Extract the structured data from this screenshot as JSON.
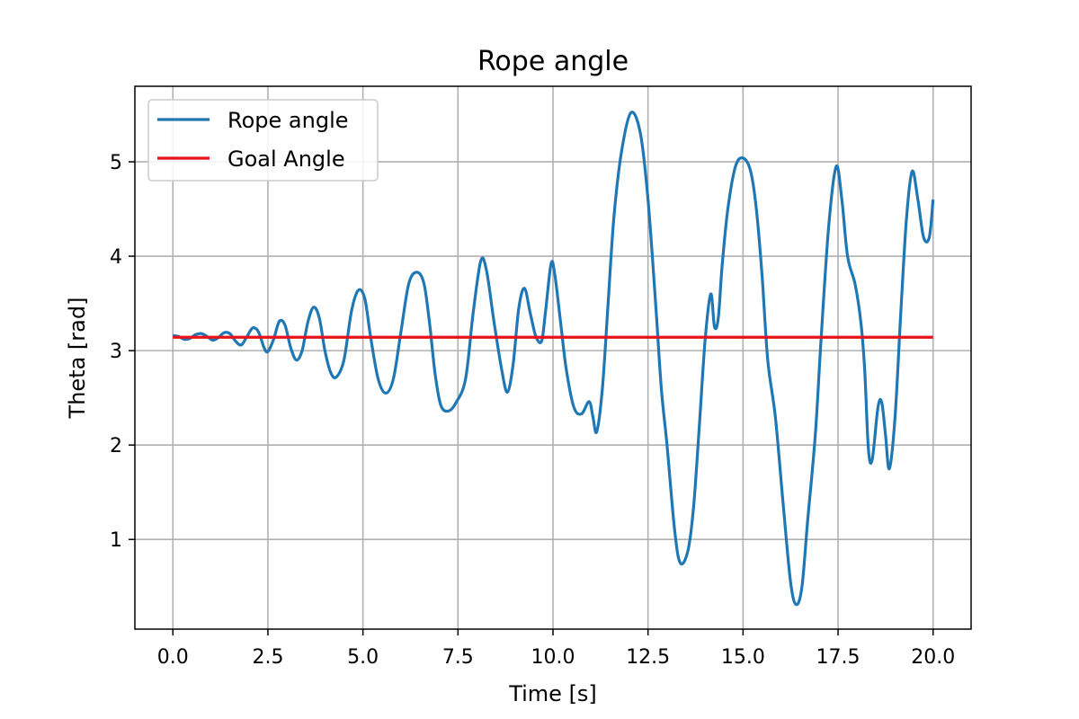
{
  "chart_data": {
    "type": "line",
    "title": "Rope angle",
    "xlabel": "Time [s]",
    "ylabel": "Theta [rad]",
    "xlim": [
      -1.0,
      21.0
    ],
    "ylim": [
      0.05,
      5.8
    ],
    "xticks": [
      0,
      2.5,
      5,
      7.5,
      10,
      12.5,
      15,
      17.5,
      20
    ],
    "xtick_labels": [
      "0.0",
      "2.5",
      "5.0",
      "7.5",
      "10.0",
      "12.5",
      "15.0",
      "17.5",
      "20.0"
    ],
    "yticks": [
      1,
      2,
      3,
      4,
      5
    ],
    "ytick_labels": [
      "1",
      "2",
      "3",
      "4",
      "5"
    ],
    "grid": true,
    "legend_position": "top-left",
    "series": [
      {
        "name": "Rope angle",
        "color": "#1f77b4",
        "points": [
          [
            0.0,
            3.16
          ],
          [
            0.15,
            3.15
          ],
          [
            0.3,
            3.12
          ],
          [
            0.45,
            3.13
          ],
          [
            0.6,
            3.17
          ],
          [
            0.75,
            3.18
          ],
          [
            0.9,
            3.15
          ],
          [
            1.05,
            3.11
          ],
          [
            1.2,
            3.14
          ],
          [
            1.35,
            3.19
          ],
          [
            1.5,
            3.18
          ],
          [
            1.65,
            3.1
          ],
          [
            1.8,
            3.06
          ],
          [
            1.95,
            3.15
          ],
          [
            2.1,
            3.24
          ],
          [
            2.25,
            3.2
          ],
          [
            2.4,
            3.03
          ],
          [
            2.5,
            2.99
          ],
          [
            2.65,
            3.12
          ],
          [
            2.8,
            3.31
          ],
          [
            2.95,
            3.27
          ],
          [
            3.1,
            3.03
          ],
          [
            3.25,
            2.9
          ],
          [
            3.4,
            3.0
          ],
          [
            3.55,
            3.3
          ],
          [
            3.7,
            3.46
          ],
          [
            3.85,
            3.35
          ],
          [
            4.0,
            3.0
          ],
          [
            4.15,
            2.77
          ],
          [
            4.3,
            2.72
          ],
          [
            4.5,
            2.9
          ],
          [
            4.7,
            3.42
          ],
          [
            4.88,
            3.64
          ],
          [
            5.05,
            3.55
          ],
          [
            5.2,
            3.15
          ],
          [
            5.4,
            2.7
          ],
          [
            5.6,
            2.55
          ],
          [
            5.8,
            2.7
          ],
          [
            6.0,
            3.2
          ],
          [
            6.2,
            3.7
          ],
          [
            6.4,
            3.83
          ],
          [
            6.6,
            3.72
          ],
          [
            6.75,
            3.3
          ],
          [
            6.9,
            2.75
          ],
          [
            7.05,
            2.42
          ],
          [
            7.25,
            2.36
          ],
          [
            7.45,
            2.45
          ],
          [
            7.7,
            2.7
          ],
          [
            7.9,
            3.4
          ],
          [
            8.1,
            3.95
          ],
          [
            8.25,
            3.85
          ],
          [
            8.45,
            3.3
          ],
          [
            8.65,
            2.8
          ],
          [
            8.8,
            2.56
          ],
          [
            8.95,
            2.85
          ],
          [
            9.1,
            3.45
          ],
          [
            9.25,
            3.66
          ],
          [
            9.4,
            3.4
          ],
          [
            9.55,
            3.15
          ],
          [
            9.7,
            3.1
          ],
          [
            9.8,
            3.4
          ],
          [
            9.95,
            3.92
          ],
          [
            10.05,
            3.8
          ],
          [
            10.2,
            3.3
          ],
          [
            10.35,
            2.8
          ],
          [
            10.55,
            2.4
          ],
          [
            10.75,
            2.33
          ],
          [
            10.95,
            2.46
          ],
          [
            11.05,
            2.3
          ],
          [
            11.15,
            2.14
          ],
          [
            11.3,
            2.6
          ],
          [
            11.45,
            3.5
          ],
          [
            11.6,
            4.4
          ],
          [
            11.8,
            5.1
          ],
          [
            12.05,
            5.52
          ],
          [
            12.3,
            5.3
          ],
          [
            12.5,
            4.6
          ],
          [
            12.7,
            3.5
          ],
          [
            12.85,
            2.6
          ],
          [
            13.0,
            2.0
          ],
          [
            13.2,
            1.1
          ],
          [
            13.35,
            0.75
          ],
          [
            13.55,
            0.88
          ],
          [
            13.7,
            1.35
          ],
          [
            13.85,
            2.2
          ],
          [
            14.0,
            3.1
          ],
          [
            14.15,
            3.6
          ],
          [
            14.25,
            3.25
          ],
          [
            14.35,
            3.35
          ],
          [
            14.45,
            3.9
          ],
          [
            14.6,
            4.5
          ],
          [
            14.8,
            4.95
          ],
          [
            15.0,
            5.04
          ],
          [
            15.2,
            4.9
          ],
          [
            15.35,
            4.5
          ],
          [
            15.5,
            3.8
          ],
          [
            15.65,
            2.9
          ],
          [
            15.85,
            2.3
          ],
          [
            16.05,
            1.4
          ],
          [
            16.25,
            0.55
          ],
          [
            16.4,
            0.31
          ],
          [
            16.55,
            0.5
          ],
          [
            16.7,
            1.2
          ],
          [
            16.9,
            2.1
          ],
          [
            17.05,
            3.1
          ],
          [
            17.25,
            4.3
          ],
          [
            17.45,
            4.95
          ],
          [
            17.6,
            4.6
          ],
          [
            17.75,
            4.0
          ],
          [
            17.95,
            3.7
          ],
          [
            18.1,
            3.3
          ],
          [
            18.2,
            2.8
          ],
          [
            18.3,
            1.95
          ],
          [
            18.4,
            1.85
          ],
          [
            18.55,
            2.4
          ],
          [
            18.65,
            2.45
          ],
          [
            18.75,
            2.1
          ],
          [
            18.85,
            1.75
          ],
          [
            19.0,
            2.3
          ],
          [
            19.15,
            3.4
          ],
          [
            19.3,
            4.4
          ],
          [
            19.45,
            4.9
          ],
          [
            19.6,
            4.6
          ],
          [
            19.75,
            4.2
          ],
          [
            19.9,
            4.2
          ],
          [
            20.0,
            4.6
          ]
        ]
      },
      {
        "name": "Goal Angle",
        "color": "#e8121a",
        "points": [
          [
            0.0,
            3.14159
          ],
          [
            20.0,
            3.14159
          ]
        ]
      }
    ]
  }
}
